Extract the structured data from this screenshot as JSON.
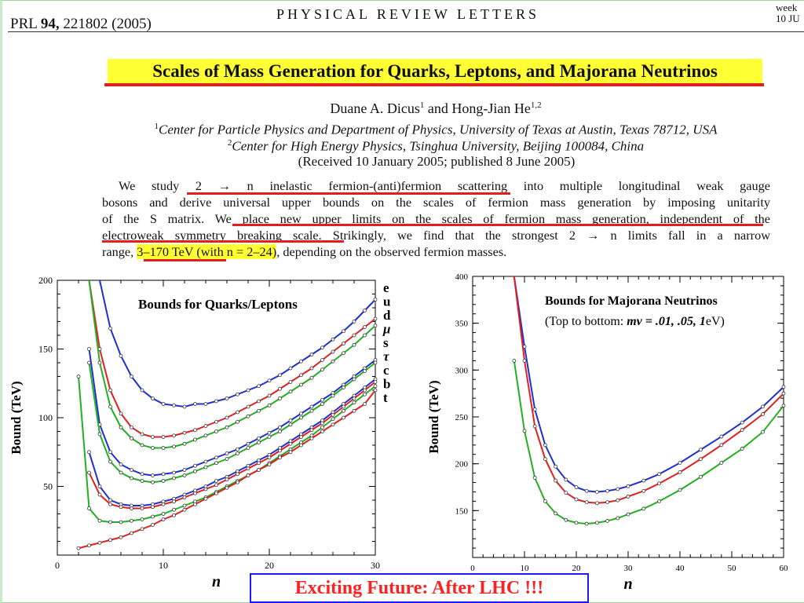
{
  "header": {
    "journal": "PRL",
    "volume": "94,",
    "article": "221802 (2005)",
    "center": "PHYSICAL REVIEW LETTERS",
    "right_line1": "week",
    "right_line2": "10 JU"
  },
  "title": "Scales of Mass Generation for Quarks, Leptons, and Majorana Neutrinos",
  "authors": {
    "a1_name": "Duane A. Dicus",
    "a1_sup": "1",
    "and": "and",
    "a2_name": "Hong-Jian He",
    "a2_sup": "1,2"
  },
  "affiliations": [
    {
      "sup": "1",
      "text": "Center for Particle Physics and Department of Physics, University of Texas at Austin, Texas 78712, USA"
    },
    {
      "sup": "2",
      "text": "Center for High Energy Physics, Tsinghua University, Beijing 100084, China"
    }
  ],
  "received": "(Received 10 January 2005; published 8 June 2005)",
  "abstract": {
    "l1_a": "We study ",
    "l1_b": "2 → n inelastic fermion-(anti)fermion scattering",
    "l1_c": " into multiple longitudinal weak gauge",
    "l2": "bosons and derive universal upper bounds on the scales of fermion mass generation by imposing unitarity",
    "l3_a": "of the S matrix. We ",
    "l3_b": "place new upper limits on the scales of fermion mass generation, independent of the",
    "l4_a": "electroweak symmetry breaking scale",
    "l4_b": ". Strikingly, we find that the strongest 2 → n limits fall in a narrow",
    "l5_a": "range, ",
    "l5_b": "3–170 TeV (with n = 2–24)",
    "l5_c": ", depending on the observed fermion masses."
  },
  "footer": "Exciting Future: After LHC !!!",
  "chart_data": [
    {
      "type": "line",
      "title": "Bounds for Quarks/Leptons",
      "xlabel": "n",
      "ylabel": "Bound (TeV)",
      "xlim": [
        0,
        30
      ],
      "ylim": [
        0,
        200
      ],
      "xticks": [
        0,
        10,
        20,
        30
      ],
      "yticks": [
        50,
        100,
        150,
        200
      ],
      "grid": false,
      "series": [
        {
          "name": "e",
          "color": "#1f2fcf",
          "x": [
            4,
            5,
            6,
            7,
            8,
            9,
            10,
            11,
            12,
            13,
            14,
            15,
            16,
            17,
            18,
            19,
            20,
            21,
            22,
            23,
            24,
            25,
            26,
            27,
            28,
            29,
            30
          ],
          "y": [
            200,
            165,
            145,
            130,
            120,
            114,
            110,
            109,
            108,
            110,
            110,
            112,
            114,
            117,
            120,
            123,
            127,
            131,
            136,
            141,
            146,
            151,
            157,
            163,
            170,
            178,
            186
          ]
        },
        {
          "name": "u",
          "color": "#e02020",
          "x": [
            3,
            4,
            5,
            6,
            7,
            8,
            9,
            10,
            11,
            12,
            13,
            14,
            15,
            16,
            17,
            18,
            19,
            20,
            21,
            22,
            23,
            24,
            25,
            26,
            27,
            28,
            29,
            30
          ],
          "y": [
            200,
            150,
            120,
            103,
            93,
            88,
            86,
            86,
            87,
            89,
            91,
            94,
            97,
            100,
            104,
            108,
            112,
            116,
            121,
            126,
            131,
            136,
            142,
            148,
            154,
            160,
            166,
            172
          ]
        },
        {
          "name": "d",
          "color": "#20b020",
          "x": [
            3,
            4,
            5,
            6,
            7,
            8,
            9,
            10,
            11,
            12,
            13,
            14,
            15,
            16,
            17,
            18,
            19,
            20,
            21,
            22,
            23,
            24,
            25,
            26,
            27,
            28,
            29,
            30
          ],
          "y": [
            200,
            140,
            108,
            93,
            85,
            80,
            78,
            78,
            79,
            81,
            84,
            87,
            90,
            93,
            97,
            101,
            105,
            109,
            114,
            119,
            124,
            129,
            135,
            141,
            147,
            153,
            160,
            167
          ]
        },
        {
          "name": "μ",
          "color": "#1f2fcf",
          "x": [
            3,
            4,
            5,
            6,
            7,
            8,
            9,
            10,
            11,
            12,
            13,
            14,
            15,
            16,
            17,
            18,
            19,
            20,
            21,
            22,
            23,
            24,
            25,
            26,
            27,
            28,
            29,
            30
          ],
          "y": [
            150,
            95,
            75,
            66,
            62,
            59,
            58,
            59,
            60,
            62,
            65,
            68,
            71,
            74,
            77,
            81,
            85,
            89,
            93,
            98,
            103,
            108,
            113,
            118,
            124,
            130,
            136,
            142
          ]
        },
        {
          "name": "s",
          "color": "#20b020",
          "x": [
            3,
            4,
            5,
            6,
            7,
            8,
            9,
            10,
            11,
            12,
            13,
            14,
            15,
            16,
            17,
            18,
            19,
            20,
            21,
            22,
            23,
            24,
            25,
            26,
            27,
            28,
            29,
            30
          ],
          "y": [
            140,
            88,
            68,
            60,
            56,
            54,
            53,
            54,
            56,
            58,
            61,
            64,
            67,
            70,
            74,
            78,
            82,
            86,
            90,
            95,
            100,
            105,
            110,
            116,
            122,
            128,
            134,
            140
          ]
        },
        {
          "name": "τ",
          "color": "#1f2fcf",
          "x": [
            3,
            4,
            5,
            6,
            7,
            8,
            9,
            10,
            11,
            12,
            13,
            14,
            15,
            16,
            17,
            18,
            19,
            20,
            21,
            22,
            23,
            24,
            25,
            26,
            27,
            28,
            29,
            30
          ],
          "y": [
            75,
            50,
            40,
            37,
            36,
            36,
            37,
            39,
            41,
            44,
            47,
            50,
            54,
            57,
            61,
            65,
            69,
            73,
            78,
            83,
            88,
            93,
            98,
            104,
            110,
            116,
            122,
            128
          ]
        },
        {
          "name": "c",
          "color": "#e02020",
          "x": [
            3,
            4,
            5,
            6,
            7,
            8,
            9,
            10,
            11,
            12,
            13,
            14,
            15,
            16,
            17,
            18,
            19,
            20,
            21,
            22,
            23,
            24,
            25,
            26,
            27,
            28,
            29,
            30
          ],
          "y": [
            60,
            44,
            37,
            35,
            34,
            34,
            35,
            37,
            39,
            42,
            45,
            48,
            51,
            55,
            59,
            63,
            67,
            71,
            76,
            81,
            86,
            91,
            96,
            102,
            108,
            114,
            120,
            126
          ]
        },
        {
          "name": "b",
          "color": "#20b020",
          "x": [
            2,
            3,
            4,
            5,
            6,
            7,
            8,
            9,
            10,
            11,
            12,
            13,
            14,
            15,
            16,
            17,
            18,
            19,
            20,
            21,
            22,
            23,
            24,
            25,
            26,
            27,
            28,
            29,
            30
          ],
          "y": [
            130,
            34,
            25,
            24,
            24,
            25,
            26,
            28,
            30,
            33,
            36,
            39,
            42,
            46,
            50,
            54,
            58,
            62,
            67,
            72,
            77,
            82,
            87,
            93,
            99,
            105,
            111,
            117,
            123
          ]
        },
        {
          "name": "t",
          "color": "#e02020",
          "x": [
            2,
            3,
            4,
            5,
            6,
            7,
            8,
            9,
            10,
            11,
            12,
            13,
            14,
            15,
            16,
            17,
            18,
            19,
            20,
            21,
            22,
            23,
            24,
            25,
            26,
            27,
            28,
            29,
            30
          ],
          "y": [
            5,
            7,
            9,
            11,
            13,
            16,
            19,
            22,
            26,
            29,
            33,
            37,
            41,
            45,
            49,
            53,
            58,
            62,
            66,
            71,
            75,
            80,
            85,
            90,
            95,
            100,
            105,
            110,
            120
          ]
        }
      ]
    },
    {
      "type": "line",
      "title": "Bounds for Majorana Neutrinos",
      "subtitle_prefix": "(Top to bottom: ",
      "subtitle_math": "mν = .01, .05, 1",
      "subtitle_suffix": "eV)",
      "xlabel": "n",
      "ylabel": "Bound (TeV)",
      "xlim": [
        0,
        60
      ],
      "ylim": [
        100,
        400
      ],
      "xticks": [
        0,
        10,
        20,
        30,
        40,
        50,
        60
      ],
      "yticks": [
        150,
        200,
        250,
        300,
        350,
        400
      ],
      "grid": false,
      "series": [
        {
          "name": ".01",
          "color": "#1f2fcf",
          "x": [
            8,
            10,
            12,
            14,
            16,
            18,
            20,
            22,
            24,
            26,
            28,
            30,
            33,
            36,
            40,
            44,
            48,
            52,
            56,
            60
          ],
          "y": [
            400,
            325,
            258,
            220,
            197,
            183,
            175,
            171,
            170,
            171,
            173,
            176,
            182,
            189,
            201,
            215,
            229,
            244,
            261,
            282
          ]
        },
        {
          "name": ".05",
          "color": "#e02020",
          "x": [
            8,
            10,
            12,
            14,
            16,
            18,
            20,
            22,
            24,
            26,
            28,
            30,
            33,
            36,
            40,
            44,
            48,
            52,
            56,
            60
          ],
          "y": [
            400,
            310,
            240,
            205,
            182,
            169,
            162,
            159,
            158,
            159,
            161,
            165,
            171,
            179,
            191,
            205,
            220,
            236,
            253,
            275
          ]
        },
        {
          "name": "1",
          "color": "#20b020",
          "x": [
            8,
            10,
            12,
            14,
            16,
            18,
            20,
            22,
            24,
            26,
            28,
            30,
            33,
            36,
            40,
            44,
            48,
            52,
            56,
            60
          ],
          "y": [
            310,
            235,
            185,
            160,
            147,
            140,
            137,
            136,
            137,
            139,
            142,
            146,
            152,
            160,
            172,
            186,
            201,
            216,
            234,
            262
          ]
        }
      ]
    }
  ]
}
